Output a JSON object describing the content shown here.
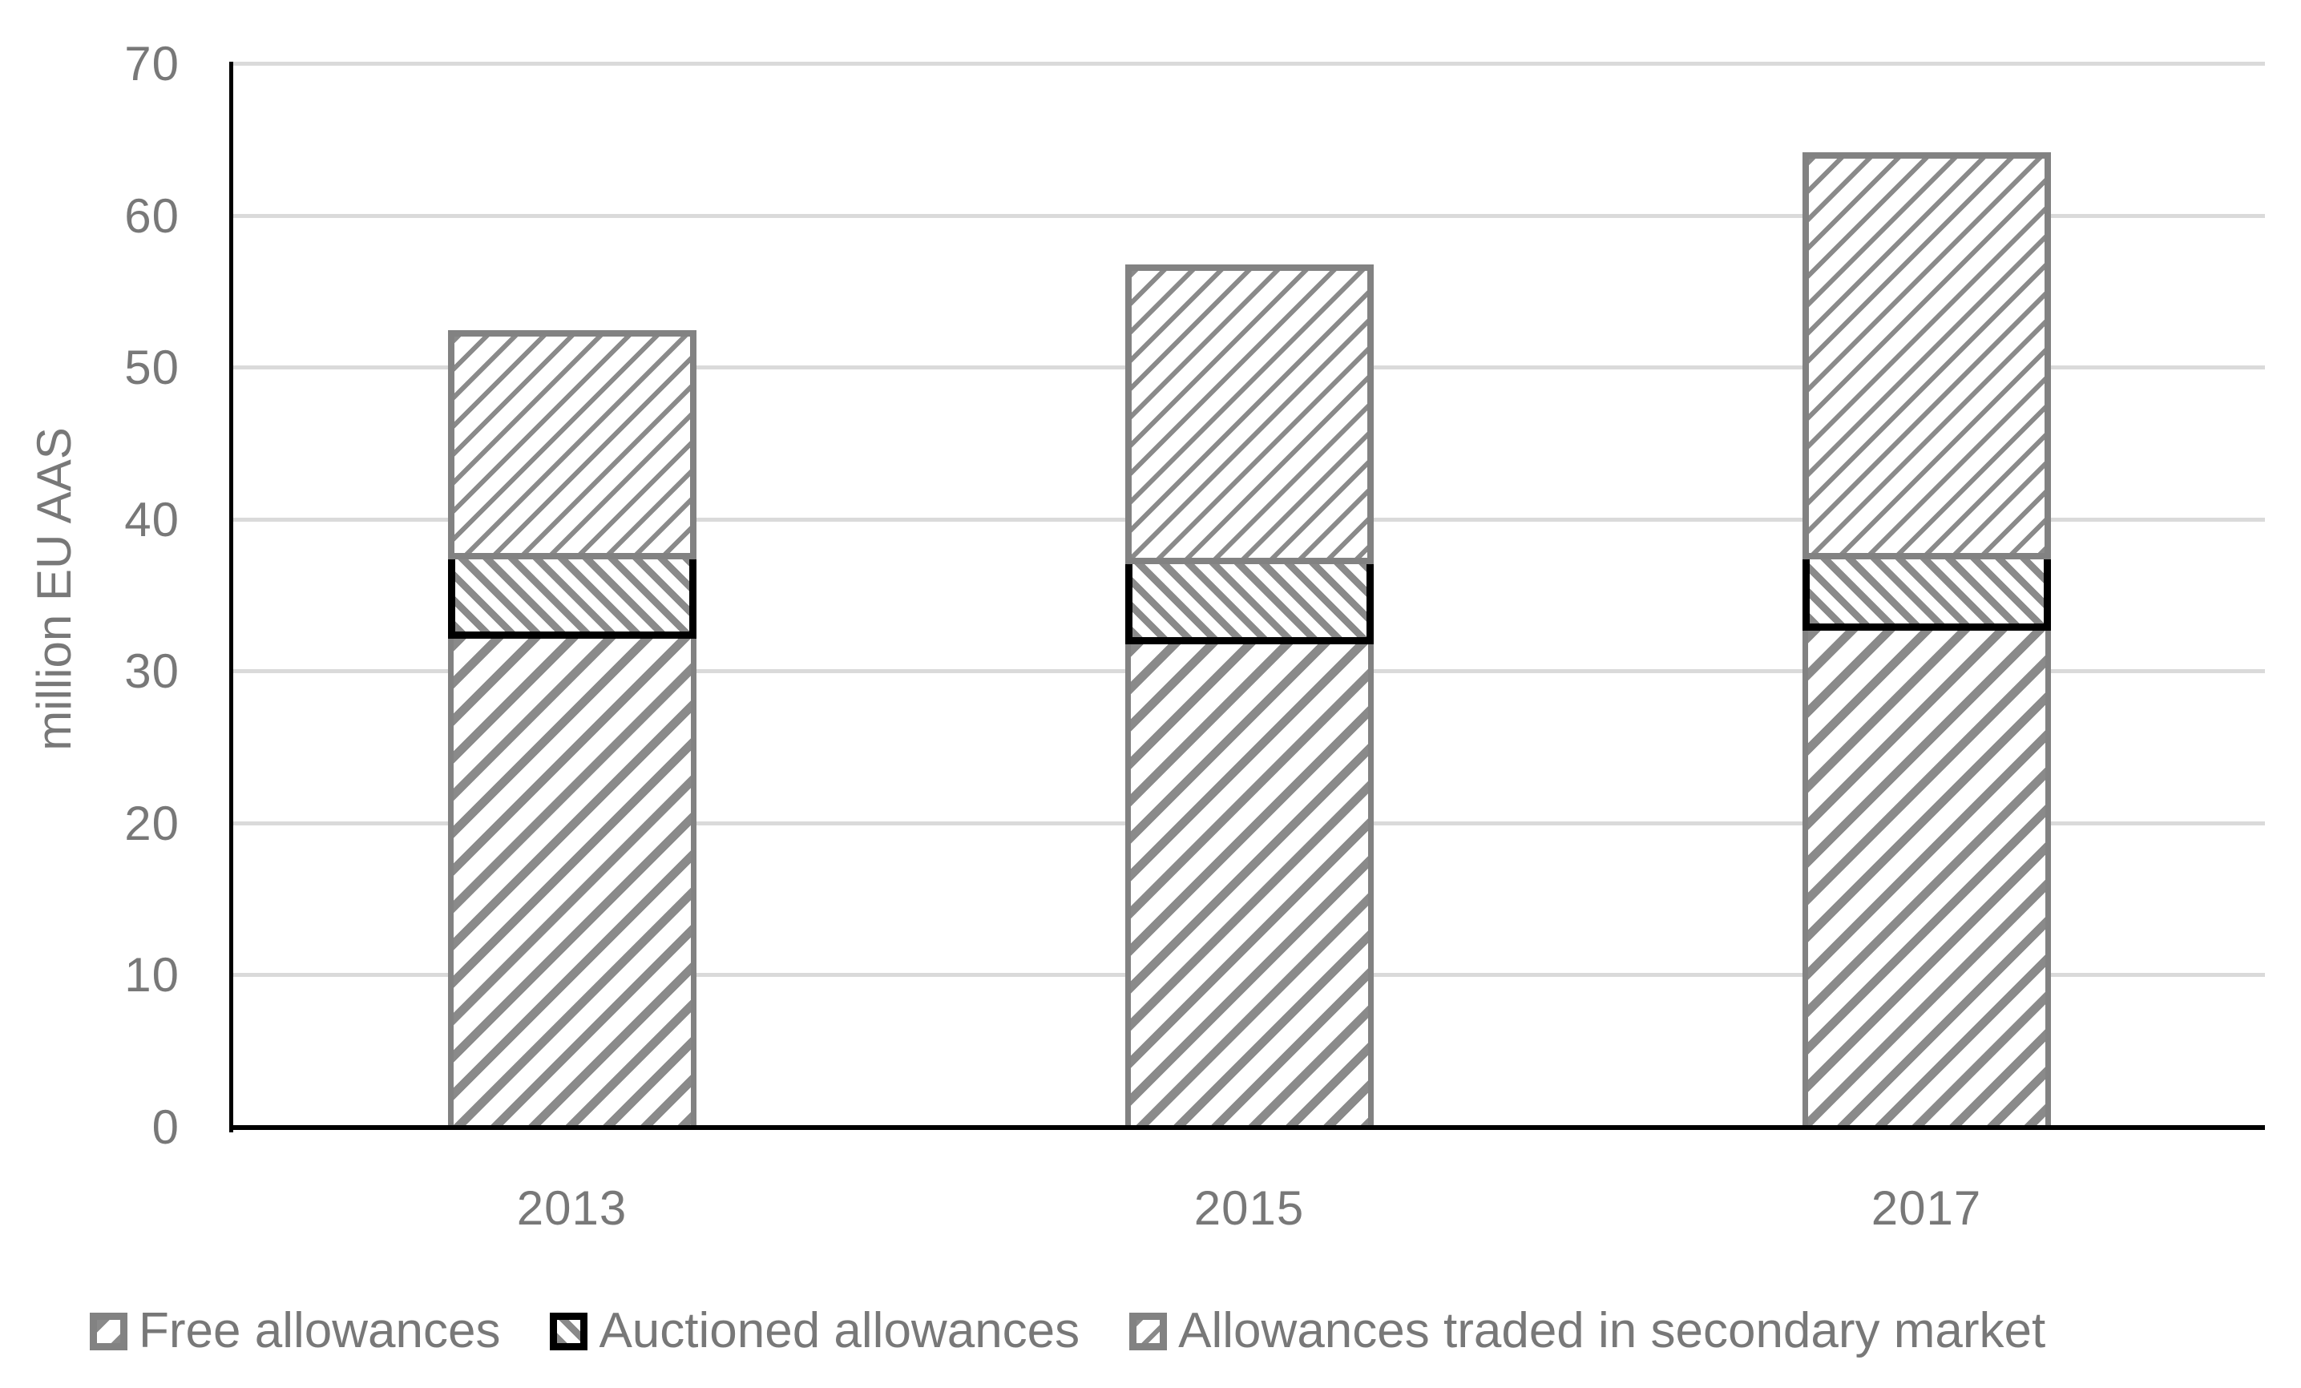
{
  "colors": {
    "text": "#787878",
    "hatch": "#8a8a8a",
    "bar_border": "#828282",
    "auctioned_border": "#000000",
    "gridline": "#dadada",
    "axis": "#000000",
    "background": "#ffffff"
  },
  "chart_data": {
    "type": "bar",
    "stacked": true,
    "title": "",
    "ylabel": "million EU AAS",
    "xlabel": "",
    "categories": [
      "2013",
      "2015",
      "2017"
    ],
    "series": [
      {
        "name": "Free allowances",
        "pattern": "free",
        "values": [
          32.2,
          31.8,
          32.7
        ]
      },
      {
        "name": "Auctioned allowances",
        "pattern": "auctioned",
        "values": [
          5.2,
          5.3,
          4.7
        ]
      },
      {
        "name": "Allowances traded in secondary market",
        "pattern": "secondary",
        "values": [
          15.1,
          19.7,
          26.8
        ]
      }
    ],
    "totals": [
      52.5,
      56.8,
      64.2
    ],
    "ylim": [
      0,
      70
    ],
    "yticks": [
      "0",
      "10",
      "20",
      "30",
      "40",
      "50",
      "60",
      "70"
    ],
    "grid": true,
    "legend_position": "bottom"
  }
}
